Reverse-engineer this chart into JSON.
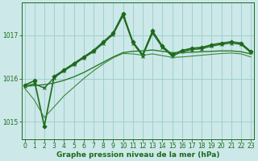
{
  "xlabel": "Graphe pression niveau de la mer (hPa)",
  "bg_color": "#cce8e8",
  "grid_color": "#99cccc",
  "ylim": [
    1014.6,
    1017.75
  ],
  "xlim": [
    -0.3,
    23.3
  ],
  "yticks": [
    1015,
    1016,
    1017
  ],
  "xticks": [
    0,
    1,
    2,
    3,
    4,
    5,
    6,
    7,
    8,
    9,
    10,
    11,
    12,
    13,
    14,
    15,
    16,
    17,
    18,
    19,
    20,
    21,
    22,
    23
  ],
  "series": [
    {
      "name": "main_jagged",
      "x": [
        0,
        1,
        2,
        3,
        4,
        5,
        6,
        7,
        8,
        9,
        10,
        11,
        12,
        13,
        14,
        15,
        16,
        17,
        18,
        19,
        20,
        21,
        22,
        23
      ],
      "y": [
        1015.85,
        1015.95,
        1014.9,
        1016.05,
        1016.2,
        1016.35,
        1016.5,
        1016.65,
        1016.85,
        1017.05,
        1017.5,
        1016.85,
        1016.55,
        1017.1,
        1016.75,
        1016.55,
        1016.65,
        1016.7,
        1016.72,
        1016.78,
        1016.82,
        1016.85,
        1016.82,
        1016.62
      ],
      "color": "#1a6b1a",
      "lw": 1.2,
      "marker": "D",
      "ms": 2.5,
      "linestyle": "solid"
    },
    {
      "name": "second_jagged",
      "x": [
        0,
        1,
        2,
        3,
        4,
        5,
        6,
        7,
        8,
        9,
        10,
        11,
        12,
        13,
        14,
        15,
        16,
        17,
        18,
        19,
        20,
        21,
        22,
        23
      ],
      "y": [
        1015.82,
        1015.88,
        1015.78,
        1016.02,
        1016.18,
        1016.32,
        1016.48,
        1016.62,
        1016.82,
        1017.02,
        1017.45,
        1016.82,
        1016.52,
        1017.05,
        1016.72,
        1016.52,
        1016.62,
        1016.67,
        1016.69,
        1016.75,
        1016.79,
        1016.82,
        1016.79,
        1016.6
      ],
      "color": "#226622",
      "lw": 1.0,
      "marker": "x",
      "ms": 3.0,
      "linestyle": "solid"
    },
    {
      "name": "smooth_upper",
      "x": [
        0,
        1,
        2,
        3,
        4,
        5,
        6,
        7,
        8,
        9,
        10,
        11,
        12,
        13,
        14,
        15,
        16,
        17,
        18,
        19,
        20,
        21,
        22,
        23
      ],
      "y": [
        1015.82,
        1015.84,
        1015.86,
        1015.9,
        1015.96,
        1016.04,
        1016.14,
        1016.26,
        1016.38,
        1016.5,
        1016.6,
        1016.63,
        1016.64,
        1016.66,
        1016.63,
        1016.6,
        1016.6,
        1016.61,
        1016.62,
        1016.63,
        1016.64,
        1016.64,
        1016.62,
        1016.57
      ],
      "color": "#2a7a2a",
      "lw": 1.0,
      "marker": null,
      "ms": 0,
      "linestyle": "solid"
    },
    {
      "name": "smooth_lower",
      "x": [
        0,
        1,
        2,
        3,
        4,
        5,
        6,
        7,
        8,
        9,
        10,
        11,
        12,
        13,
        14,
        15,
        16,
        17,
        18,
        19,
        20,
        21,
        22,
        23
      ],
      "y": [
        1015.78,
        1015.5,
        1015.1,
        1015.35,
        1015.6,
        1015.8,
        1016.0,
        1016.18,
        1016.34,
        1016.48,
        1016.58,
        1016.57,
        1016.54,
        1016.57,
        1016.53,
        1016.49,
        1016.5,
        1016.52,
        1016.54,
        1016.56,
        1016.58,
        1016.59,
        1016.57,
        1016.5
      ],
      "color": "#3a8a3a",
      "lw": 0.8,
      "marker": null,
      "ms": 0,
      "linestyle": "solid"
    }
  ],
  "tick_fontsize": 5.5,
  "label_fontsize": 6.5,
  "tick_color": "#1a6b1a",
  "label_color": "#1a6b1a",
  "spine_color": "#1a6b1a"
}
